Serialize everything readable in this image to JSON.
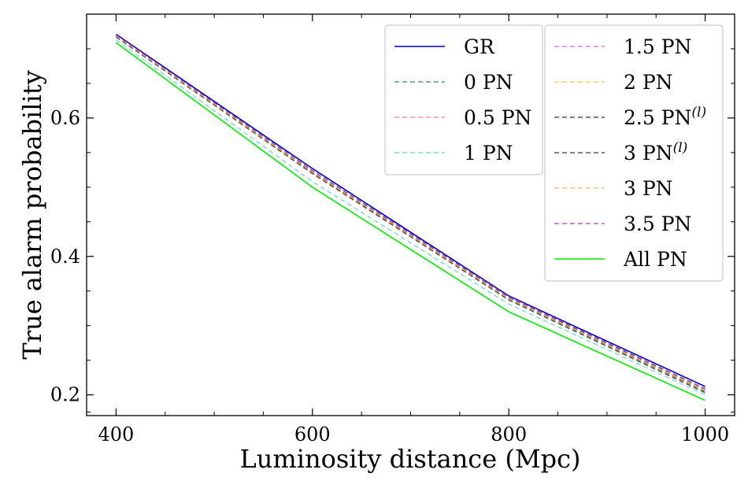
{
  "chart_data": {
    "type": "line",
    "title": "",
    "xlabel": "Luminosity distance (Mpc)",
    "ylabel": "True alarm probability",
    "xlim": [
      370,
      1030
    ],
    "ylim": [
      0.17,
      0.75
    ],
    "xticks": [
      400,
      600,
      800,
      1000
    ],
    "xtick_labels": [
      "400",
      "600",
      "800",
      "1000"
    ],
    "yticks": [
      0.2,
      0.4,
      0.6
    ],
    "ytick_labels": [
      "0.2",
      "0.4",
      "0.6"
    ],
    "x": [
      400,
      600,
      800,
      1000
    ],
    "legend_position": "top-right",
    "series": [
      {
        "name": "GR",
        "values": [
          0.721,
          0.527,
          0.343,
          0.212
        ],
        "color": "#0000cc",
        "dash": "solid",
        "width": 1.6
      },
      {
        "name": "0 PN",
        "values": [
          0.719,
          0.521,
          0.338,
          0.205
        ],
        "color": "#2e8b57",
        "dash": "dashed",
        "width": 1.2
      },
      {
        "name": "0.5 PN",
        "values": [
          0.718,
          0.519,
          0.337,
          0.204
        ],
        "color": "#f08080",
        "dash": "dashed",
        "width": 1.2
      },
      {
        "name": "1 PN",
        "values": [
          0.713,
          0.508,
          0.331,
          0.2
        ],
        "color": "#66d4d4",
        "dash": "dashed",
        "width": 1.2
      },
      {
        "name": "1.5 PN",
        "values": [
          0.719,
          0.523,
          0.34,
          0.208
        ],
        "color": "#e066e0",
        "dash": "dashed",
        "width": 1.2
      },
      {
        "name": "2 PN",
        "values": [
          0.718,
          0.522,
          0.339,
          0.207
        ],
        "color": "#e6c84a",
        "dash": "dashed",
        "width": 1.2
      },
      {
        "name": "2.5 PN(l)",
        "values": [
          0.717,
          0.52,
          0.337,
          0.203
        ],
        "color": "#555555",
        "dash": "dashed",
        "width": 1.4
      },
      {
        "name": "3 PN(l)",
        "values": [
          0.72,
          0.524,
          0.341,
          0.208
        ],
        "color": "#5a4e8a",
        "dash": "dashed",
        "width": 1.4
      },
      {
        "name": "3 PN",
        "values": [
          0.719,
          0.522,
          0.339,
          0.207
        ],
        "color": "#f4b54a",
        "dash": "dashed",
        "width": 1.2
      },
      {
        "name": "3.5 PN",
        "values": [
          0.72,
          0.524,
          0.342,
          0.209
        ],
        "color": "#b040b0",
        "dash": "dashed",
        "width": 1.2
      },
      {
        "name": "All PN",
        "values": [
          0.709,
          0.5,
          0.32,
          0.192
        ],
        "color": "#00ee00",
        "dash": "solid",
        "width": 1.6
      }
    ],
    "legend_columns": [
      [
        {
          "label": "GR",
          "sup": ""
        },
        {
          "label": "0 PN",
          "sup": ""
        },
        {
          "label": "0.5 PN",
          "sup": ""
        },
        {
          "label": "1 PN",
          "sup": ""
        }
      ],
      [
        {
          "label": "1.5 PN",
          "sup": ""
        },
        {
          "label": "2 PN",
          "sup": ""
        },
        {
          "label": "2.5 PN",
          "sup": "(l)"
        },
        {
          "label": "3 PN",
          "sup": "(l)"
        },
        {
          "label": "3 PN",
          "sup": ""
        },
        {
          "label": "3.5 PN",
          "sup": ""
        },
        {
          "label": "All PN",
          "sup": ""
        }
      ]
    ]
  }
}
